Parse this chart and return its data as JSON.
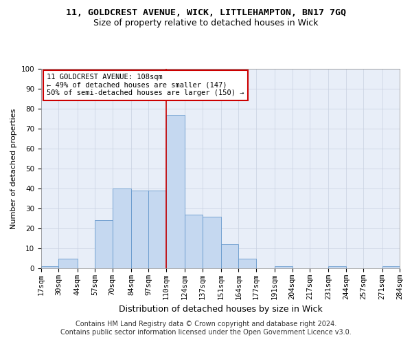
{
  "title1": "11, GOLDCREST AVENUE, WICK, LITTLEHAMPTON, BN17 7GQ",
  "title2": "Size of property relative to detached houses in Wick",
  "xlabel": "Distribution of detached houses by size in Wick",
  "ylabel": "Number of detached properties",
  "annotation_line1": "11 GOLDCREST AVENUE: 108sqm",
  "annotation_line2": "← 49% of detached houses are smaller (147)",
  "annotation_line3": "50% of semi-detached houses are larger (150) →",
  "footer1": "Contains HM Land Registry data © Crown copyright and database right 2024.",
  "footer2": "Contains public sector information licensed under the Open Government Licence v3.0.",
  "bin_edges": [
    17,
    30,
    44,
    57,
    70,
    84,
    97,
    110,
    124,
    137,
    151,
    164,
    177,
    191,
    204,
    217,
    231,
    244,
    257,
    271,
    284
  ],
  "bin_counts": [
    1,
    5,
    0,
    24,
    40,
    39,
    39,
    77,
    27,
    26,
    12,
    5,
    0,
    1,
    0,
    0,
    1,
    0,
    0,
    1
  ],
  "bar_color": "#c5d8f0",
  "bar_edge_color": "#6699cc",
  "vline_x": 110,
  "vline_color": "#cc0000",
  "bg_color": "#e8eef8",
  "annotation_box_color": "#cc0000",
  "ylim": [
    0,
    100
  ],
  "yticks": [
    0,
    10,
    20,
    30,
    40,
    50,
    60,
    70,
    80,
    90,
    100
  ],
  "title1_fontsize": 9.5,
  "title2_fontsize": 9,
  "xlabel_fontsize": 9,
  "ylabel_fontsize": 8,
  "tick_fontsize": 7.5,
  "annot_fontsize": 7.5,
  "footer_fontsize": 7
}
